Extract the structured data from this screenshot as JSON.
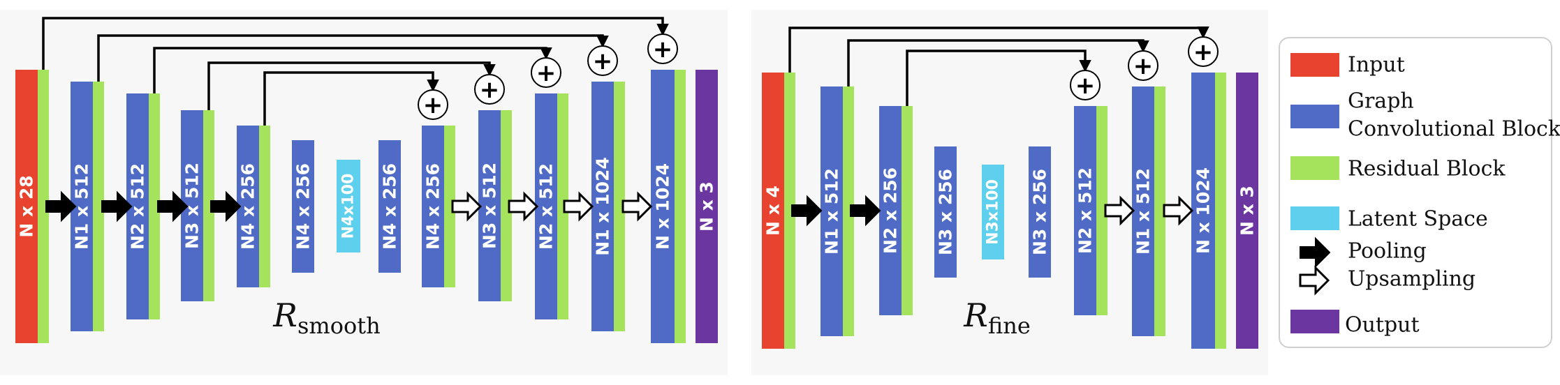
{
  "colors": {
    "input": "#e8432f",
    "graph_conv": "#4f6bc6",
    "residual": "#a6e35c",
    "latent": "#5fcfee",
    "output": "#6b36a0",
    "panel_bg": "#f7f7f7"
  },
  "panels": [
    {
      "title_main": "R",
      "title_sub": "smooth",
      "blocks": [
        {
          "label": "N x 28",
          "kind": "input"
        },
        {
          "label": "N1 x 512",
          "kind": "graph_conv"
        },
        {
          "label": "N2 x 512",
          "kind": "graph_conv"
        },
        {
          "label": "N3 x 512",
          "kind": "graph_conv"
        },
        {
          "label": "N4 x 256",
          "kind": "graph_conv"
        },
        {
          "label": "N4 x 256",
          "kind": "graph_conv"
        },
        {
          "label": "N4x100",
          "kind": "latent"
        },
        {
          "label": "N4 x 256",
          "kind": "graph_conv"
        },
        {
          "label": "N4 x 256",
          "kind": "graph_conv"
        },
        {
          "label": "N3 x 512",
          "kind": "graph_conv"
        },
        {
          "label": "N2 x 512",
          "kind": "graph_conv"
        },
        {
          "label": "N1 x 1024",
          "kind": "graph_conv"
        },
        {
          "label": "N x 1024",
          "kind": "graph_conv"
        },
        {
          "label": "N x 3",
          "kind": "output"
        }
      ],
      "skip_symbol": "+"
    },
    {
      "title_main": "R",
      "title_sub": "fine",
      "blocks": [
        {
          "label": "N x 4",
          "kind": "input"
        },
        {
          "label": "N1 x 512",
          "kind": "graph_conv"
        },
        {
          "label": "N2 x 256",
          "kind": "graph_conv"
        },
        {
          "label": "N3 x 256",
          "kind": "graph_conv"
        },
        {
          "label": "N3x100",
          "kind": "latent"
        },
        {
          "label": "N3 x 256",
          "kind": "graph_conv"
        },
        {
          "label": "N2 x 512",
          "kind": "graph_conv"
        },
        {
          "label": "N1 x 512",
          "kind": "graph_conv"
        },
        {
          "label": "N x 1024",
          "kind": "graph_conv"
        },
        {
          "label": "N x 3",
          "kind": "output"
        }
      ],
      "skip_symbol": "+"
    }
  ],
  "legend": {
    "items": [
      {
        "label": "Input",
        "icon": "input-swatch"
      },
      {
        "label": "Graph Convolutional Block",
        "icon": "graph-conv-swatch"
      },
      {
        "label": "Residual Block",
        "icon": "residual-swatch"
      },
      {
        "label": "Latent Space",
        "icon": "latent-swatch"
      },
      {
        "label": "Pooling",
        "icon": "pooling-arrow-icon"
      },
      {
        "label": "Upsampling",
        "icon": "upsampling-arrow-icon"
      },
      {
        "label": "Output",
        "icon": "output-swatch"
      }
    ]
  }
}
